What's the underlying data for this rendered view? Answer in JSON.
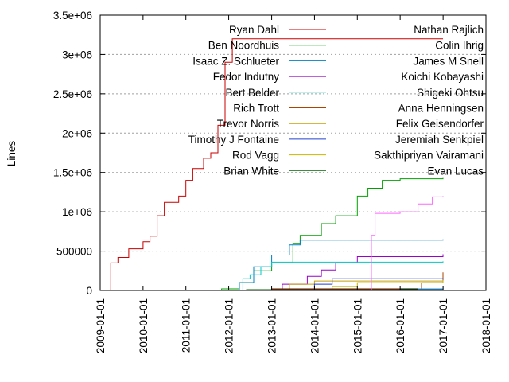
{
  "chart_data": {
    "type": "line",
    "xlabel": "",
    "ylabel": "Lines",
    "xlim": [
      "2009-01-01",
      "2018-01-01"
    ],
    "ylim": [
      0,
      3500000
    ],
    "x_ticks": [
      "2009-01-01",
      "2010-01-01",
      "2011-01-01",
      "2012-01-01",
      "2013-01-01",
      "2014-01-01",
      "2015-01-01",
      "2016-01-01",
      "2017-01-01",
      "2018-01-01"
    ],
    "y_ticks": [
      {
        "value": 0,
        "label": "0"
      },
      {
        "value": 500000,
        "label": "500000"
      },
      {
        "value": 1000000,
        "label": "1e+06"
      },
      {
        "value": 1500000,
        "label": "1.5e+06"
      },
      {
        "value": 2000000,
        "label": "2e+06"
      },
      {
        "value": 2500000,
        "label": "2.5e+06"
      },
      {
        "value": 3000000,
        "label": "3e+06"
      },
      {
        "value": 3500000,
        "label": "3.5e+06"
      }
    ],
    "grid": "horizontal dotted",
    "legend_position": "top, inside, two columns",
    "series": [
      {
        "name": "Ryan Dahl",
        "color": "#cc0000",
        "points": [
          [
            "2009-03-01",
            0
          ],
          [
            "2009-04-01",
            350000
          ],
          [
            "2009-06-01",
            420000
          ],
          [
            "2009-09-01",
            530000
          ],
          [
            "2010-01-01",
            620000
          ],
          [
            "2010-03-01",
            690000
          ],
          [
            "2010-05-01",
            950000
          ],
          [
            "2010-07-01",
            1120000
          ],
          [
            "2010-11-01",
            1200000
          ],
          [
            "2011-01-01",
            1400000
          ],
          [
            "2011-03-01",
            1550000
          ],
          [
            "2011-06-01",
            1680000
          ],
          [
            "2011-08-01",
            1750000
          ],
          [
            "2011-10-01",
            2100000
          ],
          [
            "2011-12-01",
            2900000
          ],
          [
            "2012-02-01",
            3200000
          ],
          [
            "2016-12-31",
            3200000
          ]
        ]
      },
      {
        "name": "Ben Noordhuis",
        "color": "#00a000",
        "points": [
          [
            "2011-08-01",
            0
          ],
          [
            "2011-11-01",
            20000
          ],
          [
            "2012-04-01",
            100000
          ],
          [
            "2012-08-01",
            250000
          ],
          [
            "2013-01-01",
            350000
          ],
          [
            "2013-07-01",
            600000
          ],
          [
            "2013-09-01",
            700000
          ],
          [
            "2014-03-01",
            850000
          ],
          [
            "2014-07-01",
            950000
          ],
          [
            "2015-01-01",
            1200000
          ],
          [
            "2015-04-01",
            1300000
          ],
          [
            "2015-08-01",
            1400000
          ],
          [
            "2016-01-01",
            1420000
          ],
          [
            "2016-12-31",
            1430000
          ]
        ]
      },
      {
        "name": "Isaac Z. Schlueter",
        "color": "#0080c0",
        "points": [
          [
            "2011-11-01",
            0
          ],
          [
            "2012-04-01",
            100000
          ],
          [
            "2012-08-01",
            300000
          ],
          [
            "2013-01-01",
            450000
          ],
          [
            "2013-06-01",
            580000
          ],
          [
            "2013-09-01",
            640000
          ],
          [
            "2016-12-31",
            650000
          ]
        ]
      },
      {
        "name": "Fedor Indutny",
        "color": "#9900cc",
        "points": [
          [
            "2012-12-01",
            0
          ],
          [
            "2013-04-01",
            80000
          ],
          [
            "2013-11-01",
            180000
          ],
          [
            "2014-03-01",
            260000
          ],
          [
            "2014-07-01",
            350000
          ],
          [
            "2015-01-01",
            430000
          ],
          [
            "2016-12-31",
            460000
          ]
        ]
      },
      {
        "name": "Bert Belder",
        "color": "#00c8c8",
        "points": [
          [
            "2011-10-01",
            0
          ],
          [
            "2012-05-01",
            150000
          ],
          [
            "2012-07-01",
            200000
          ],
          [
            "2012-10-01",
            300000
          ],
          [
            "2013-01-01",
            360000
          ],
          [
            "2016-12-31",
            370000
          ]
        ]
      },
      {
        "name": "Rich Trott",
        "color": "#aa4400",
        "points": [
          [
            "2015-08-01",
            0
          ],
          [
            "2016-07-01",
            100000
          ],
          [
            "2016-12-31",
            230000
          ]
        ]
      },
      {
        "name": "Trevor Norris",
        "color": "#c8a000",
        "points": [
          [
            "2012-10-01",
            0
          ],
          [
            "2013-06-01",
            80000
          ],
          [
            "2014-01-01",
            120000
          ],
          [
            "2016-12-31",
            130000
          ]
        ]
      },
      {
        "name": "Timothy J Fontaine",
        "color": "#2040d0",
        "points": [
          [
            "2013-06-01",
            0
          ],
          [
            "2014-01-01",
            80000
          ],
          [
            "2014-06-01",
            150000
          ],
          [
            "2016-12-31",
            160000
          ]
        ]
      },
      {
        "name": "Rod Vagg",
        "color": "#c8b400",
        "points": [
          [
            "2013-09-01",
            0
          ],
          [
            "2014-06-01",
            50000
          ],
          [
            "2015-01-01",
            100000
          ],
          [
            "2016-12-31",
            120000
          ]
        ]
      },
      {
        "name": "Brian White",
        "color": "#006600",
        "points": [
          [
            "2011-04-01",
            0
          ],
          [
            "2012-06-01",
            10000
          ],
          [
            "2016-12-31",
            20000
          ]
        ]
      },
      {
        "name": "Nathan Rajlich",
        "color": "#800000",
        "points": [
          [
            "2011-06-01",
            0
          ],
          [
            "2013-01-01",
            20000
          ],
          [
            "2016-12-31",
            30000
          ]
        ]
      },
      {
        "name": "Colin Ihrig",
        "color": "#000000",
        "points": [
          [
            "2013-05-01",
            0
          ],
          [
            "2016-01-01",
            20000
          ],
          [
            "2016-12-31",
            40000
          ]
        ]
      },
      {
        "name": "James M Snell",
        "color": "#4080ff",
        "points": [
          [
            "2015-06-01",
            0
          ],
          [
            "2016-06-01",
            20000
          ],
          [
            "2016-12-31",
            50000
          ]
        ]
      },
      {
        "name": "Koichi Kobayashi",
        "color": "#a000a0",
        "points": [
          [
            "2011-06-01",
            0
          ],
          [
            "2016-12-31",
            10000
          ]
        ]
      },
      {
        "name": "Shigeki Ohtsu",
        "color": "#00a0a0",
        "points": [
          [
            "2013-03-01",
            0
          ],
          [
            "2016-12-31",
            20000
          ]
        ]
      },
      {
        "name": "Anna Henningsen",
        "color": "#cc6600",
        "points": [
          [
            "2016-03-01",
            0
          ],
          [
            "2016-12-31",
            20000
          ]
        ]
      },
      {
        "name": "Felix Geisendorfer",
        "color": "#b0a000",
        "points": [
          [
            "2010-06-01",
            0
          ],
          [
            "2016-12-31",
            10000
          ]
        ]
      },
      {
        "name": "Jeremiah Senkpiel",
        "color": "#0000c0",
        "points": [
          [
            "2015-06-01",
            0
          ],
          [
            "2016-12-31",
            20000
          ]
        ]
      },
      {
        "name": "Sakthipriyan Vairamani",
        "color": "#a09000",
        "points": [
          [
            "2015-06-01",
            0
          ],
          [
            "2016-12-31",
            10000
          ]
        ]
      },
      {
        "name": "Evan Lucas",
        "color": "#008000",
        "points": [
          [
            "2015-01-01",
            0
          ],
          [
            "2016-12-31",
            15000
          ]
        ]
      },
      {
        "name": "",
        "color": "#ff66ff",
        "points": [
          [
            "2015-03-01",
            0
          ],
          [
            "2015-05-01",
            700000
          ],
          [
            "2015-06-01",
            980000
          ],
          [
            "2016-01-01",
            1000000
          ],
          [
            "2016-06-01",
            1100000
          ],
          [
            "2016-10-01",
            1190000
          ],
          [
            "2016-12-31",
            1200000
          ]
        ]
      }
    ]
  }
}
